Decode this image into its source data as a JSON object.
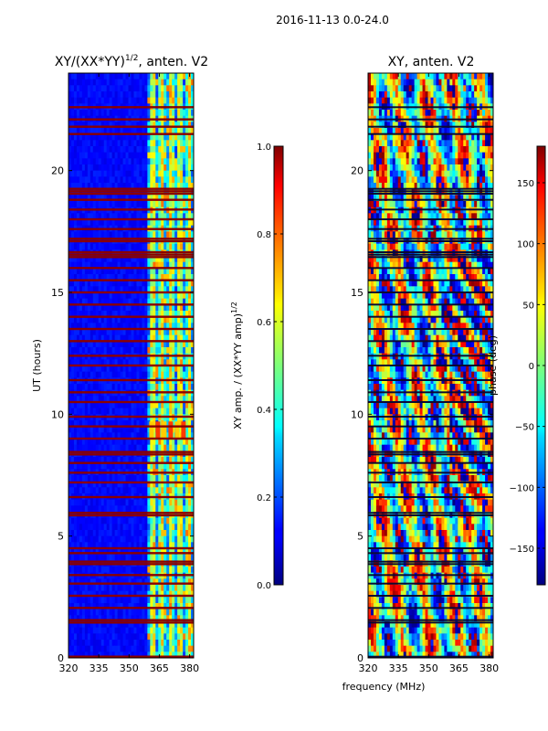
{
  "figure": {
    "suptitle": "2016-11-13 0.0-24.0",
    "shared_xlabel": "frequency (MHz)"
  },
  "chart_data": [
    {
      "type": "heatmap",
      "title": "XY/(XX*YY)",
      "title_superscript": "1/2",
      "title_suffix": ", anten. V2",
      "ylabel": "UT (hours)",
      "x_ticks": [
        "320",
        "335",
        "350",
        "365",
        "380"
      ],
      "y_ticks": [
        "0",
        "5",
        "10",
        "15",
        "20"
      ],
      "xlim": [
        320,
        382
      ],
      "ylim": [
        0,
        24
      ],
      "colormap": "jet",
      "colorbar": {
        "label": "XY amp. / (XX*YY amp)",
        "label_superscript": "1/2",
        "range": [
          0.0,
          1.0
        ],
        "ticks": [
          "0.0",
          "0.2",
          "0.4",
          "0.6",
          "0.8",
          "1.0"
        ]
      },
      "active_band_start_mhz": 359,
      "flagged_hours": [
        0.05,
        1.45,
        1.55,
        2.05,
        2.55,
        3.05,
        3.4,
        3.85,
        3.95,
        4.3,
        4.5,
        5.85,
        5.95,
        6.6,
        7.2,
        7.6,
        8.0,
        8.35,
        8.45,
        9.0,
        9.5,
        9.9,
        10.5,
        10.9,
        11.4,
        12.0,
        12.4,
        13.0,
        13.5,
        14.0,
        14.5,
        15.0,
        15.5,
        16.0,
        16.45,
        16.55,
        16.65,
        17.1,
        17.2,
        17.6,
        18.0,
        18.4,
        18.8,
        19.05,
        19.15,
        19.25,
        21.5,
        21.8,
        22.1,
        22.6
      ]
    },
    {
      "type": "heatmap",
      "title": "XY, anten. V2",
      "x_ticks": [
        "320",
        "335",
        "350",
        "365",
        "380"
      ],
      "y_ticks": [
        "0",
        "5",
        "10",
        "15",
        "20"
      ],
      "xlim": [
        320,
        382
      ],
      "ylim": [
        0,
        24
      ],
      "colormap": "jet",
      "colorbar": {
        "label": "phase (deg)",
        "range": [
          -180,
          180
        ],
        "ticks": [
          "−150",
          "−100",
          "−50",
          "0",
          "50",
          "100",
          "150"
        ]
      },
      "flagged_hours": [
        0.05,
        1.45,
        1.55,
        2.05,
        2.55,
        3.05,
        3.4,
        3.85,
        3.95,
        4.3,
        4.5,
        5.85,
        5.95,
        6.6,
        7.2,
        7.6,
        8.0,
        8.35,
        8.45,
        9.0,
        9.5,
        9.9,
        10.5,
        10.9,
        11.4,
        12.0,
        12.4,
        13.0,
        13.5,
        14.0,
        14.5,
        15.0,
        15.5,
        16.0,
        16.45,
        16.55,
        16.65,
        17.1,
        17.2,
        17.6,
        18.0,
        18.4,
        18.8,
        19.05,
        19.15,
        19.25,
        21.5,
        21.8,
        22.1,
        22.6
      ]
    }
  ]
}
